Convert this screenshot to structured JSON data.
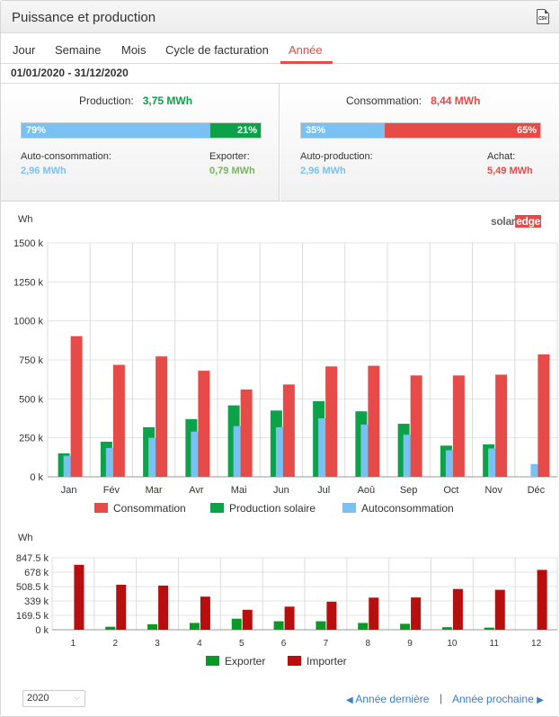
{
  "header": {
    "title": "Puissance et production",
    "export_icon": "csv-icon",
    "export_label": "CSV"
  },
  "tabs": [
    {
      "label": "Jour",
      "active": false
    },
    {
      "label": "Semaine",
      "active": false
    },
    {
      "label": "Mois",
      "active": false
    },
    {
      "label": "Cycle de facturation",
      "active": false
    },
    {
      "label": "Année",
      "active": true
    }
  ],
  "date_range": "01/01/2020 - 31/12/2020",
  "production_panel": {
    "title": "Production:",
    "value": "3,75 MWh",
    "left_pct_label": "79%",
    "right_pct_label": "21%",
    "left_fraction": 0.79,
    "left_label": "Auto-consommation:",
    "left_value": "2,96 MWh",
    "right_label": "Exporter:",
    "right_value": "0,79 MWh"
  },
  "consumption_panel": {
    "title": "Consommation:",
    "value": "8,44 MWh",
    "left_pct_label": "35%",
    "right_pct_label": "65%",
    "left_fraction": 0.35,
    "left_label": "Auto-production:",
    "left_value": "2,96 MWh",
    "right_label": "Achat:",
    "right_value": "5,49 MWh"
  },
  "colors": {
    "production": "#0ba24a",
    "self": "#79c1f2",
    "consumption": "#e64b47",
    "export": "#089a25",
    "import": "#b80e0e",
    "accent": "#e64b47"
  },
  "brand": {
    "part1": "solar",
    "part2": "edge"
  },
  "chart_data": [
    {
      "type": "bar",
      "ylabel": "Wh",
      "ylim": [
        0,
        1500000
      ],
      "ytick_labels": [
        "0 k",
        "250 k",
        "500 k",
        "750 k",
        "1000 k",
        "1250 k",
        "1500 k"
      ],
      "categories": [
        "Jan",
        "Fév",
        "Mar",
        "Avr",
        "Mai",
        "Jun",
        "Jul",
        "Aoû",
        "Sep",
        "Oct",
        "Nov",
        "Déc"
      ],
      "series": [
        {
          "name": "Consommation",
          "color": "#e64b47",
          "values": [
            902000,
            718000,
            772000,
            680000,
            560000,
            592000,
            708000,
            712000,
            650000,
            650000,
            655000,
            785000
          ]
        },
        {
          "name": "Production solaire",
          "color": "#0ba24a",
          "values": [
            150000,
            225000,
            318000,
            370000,
            458000,
            425000,
            485000,
            420000,
            340000,
            200000,
            208000,
            0
          ]
        },
        {
          "name": "Autoconsommation",
          "color": "#79c1f2",
          "values": [
            135000,
            185000,
            250000,
            290000,
            325000,
            318000,
            375000,
            335000,
            270000,
            170000,
            182000,
            82000
          ]
        }
      ],
      "grid": true,
      "legend": "bottom"
    },
    {
      "type": "bar",
      "ylabel": "Wh",
      "ylim": [
        0,
        847500
      ],
      "ytick_labels": [
        "0 k",
        "169.5 k",
        "339 k",
        "508.5 k",
        "678 k",
        "847.5 k"
      ],
      "categories": [
        "1",
        "2",
        "3",
        "4",
        "5",
        "6",
        "7",
        "8",
        "9",
        "10",
        "11",
        "12"
      ],
      "series": [
        {
          "name": "Exporter",
          "color": "#089a25",
          "values": [
            0,
            35000,
            65000,
            80000,
            130000,
            100000,
            100000,
            80000,
            70000,
            30000,
            25000,
            0
          ]
        },
        {
          "name": "Importer",
          "color": "#b80e0e",
          "values": [
            765000,
            530000,
            520000,
            390000,
            235000,
            272000,
            330000,
            378000,
            380000,
            480000,
            470000,
            705000
          ]
        }
      ],
      "grid": true,
      "legend": "bottom"
    }
  ],
  "footer": {
    "year_value": "2020",
    "prev_label": "Année dernière",
    "next_label": "Année prochaine",
    "separator": "|"
  }
}
